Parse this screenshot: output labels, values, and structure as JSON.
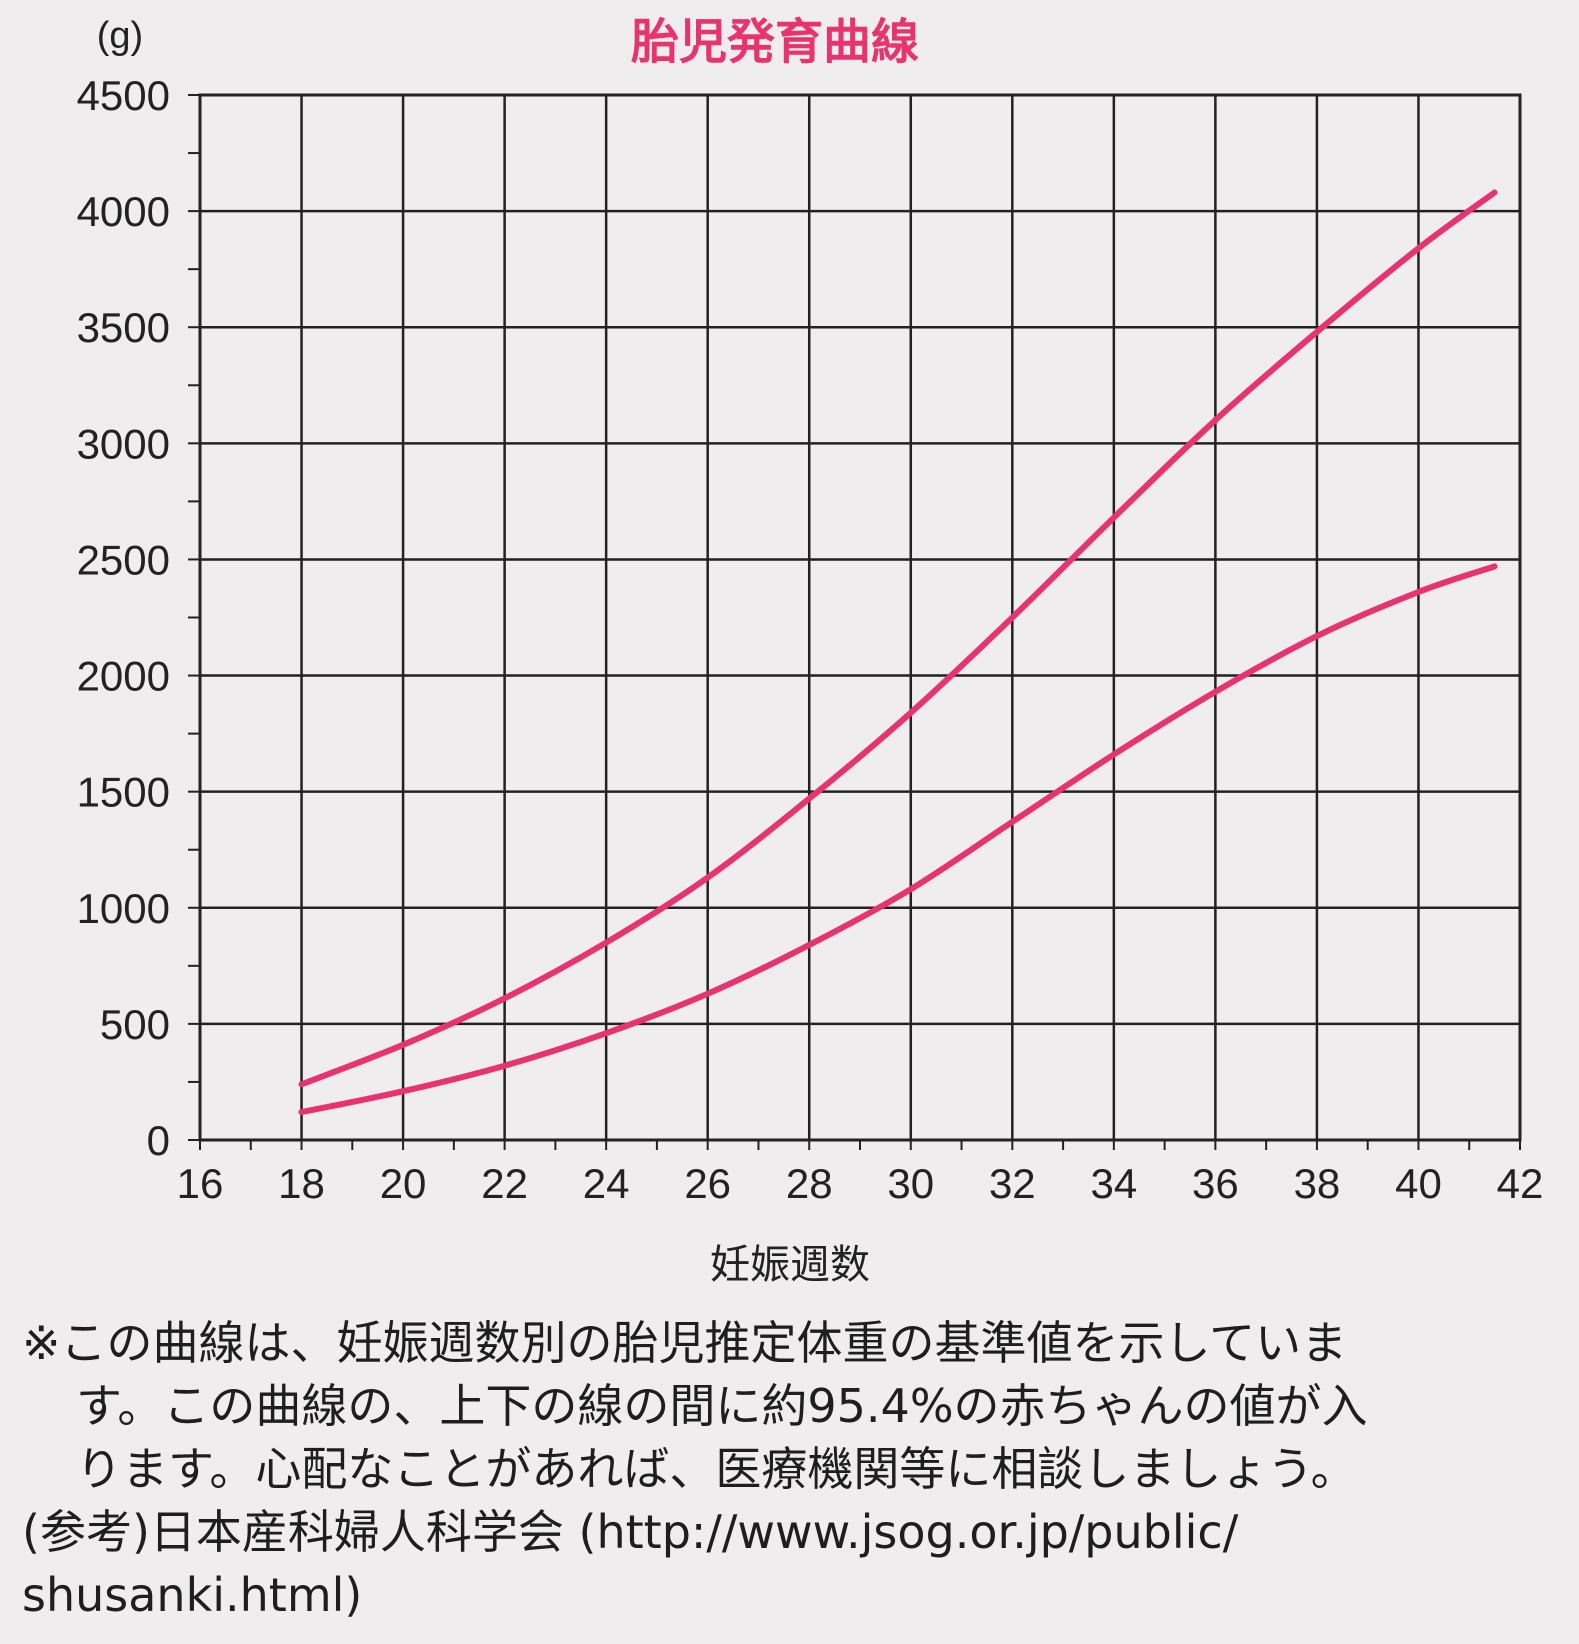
{
  "chart_data": {
    "type": "line",
    "title": "胎児発育曲線",
    "xlabel": "妊娠週数",
    "ylabel": "(g)",
    "xlim": [
      16,
      42
    ],
    "ylim": [
      0,
      4500
    ],
    "x_ticks": [
      16,
      18,
      20,
      22,
      24,
      26,
      28,
      30,
      32,
      34,
      36,
      38,
      40,
      42
    ],
    "y_ticks": [
      0,
      500,
      1000,
      1500,
      2000,
      2500,
      3000,
      3500,
      4000,
      4500
    ],
    "grid": true,
    "line_color": "#e8336e",
    "series": [
      {
        "x": [
          18,
          20,
          22,
          24,
          26,
          28,
          30,
          32,
          34,
          36,
          38,
          40,
          41.5
        ],
        "values": [
          240,
          410,
          610,
          850,
          1130,
          1470,
          1840,
          2250,
          2680,
          3100,
          3480,
          3840,
          4080
        ]
      },
      {
        "x": [
          18,
          20,
          22,
          24,
          26,
          28,
          30,
          32,
          34,
          36,
          38,
          40,
          41.5
        ],
        "values": [
          120,
          210,
          320,
          460,
          630,
          840,
          1080,
          1370,
          1660,
          1930,
          2170,
          2360,
          2470
        ]
      }
    ]
  },
  "note": {
    "line1": "※この曲線は、妊娠週数別の胎児推定体重の基準値を示していま",
    "line2": "す。この曲線の、上下の線の間に約95.4%の赤ちゃんの値が入",
    "line3": "ります。心配なことがあれば、医療機関等に相談しましょう。",
    "line4": "(参考)日本産科婦人科学会 (http://www.jsog.or.jp/public/",
    "line5": "shusanki.html)"
  }
}
